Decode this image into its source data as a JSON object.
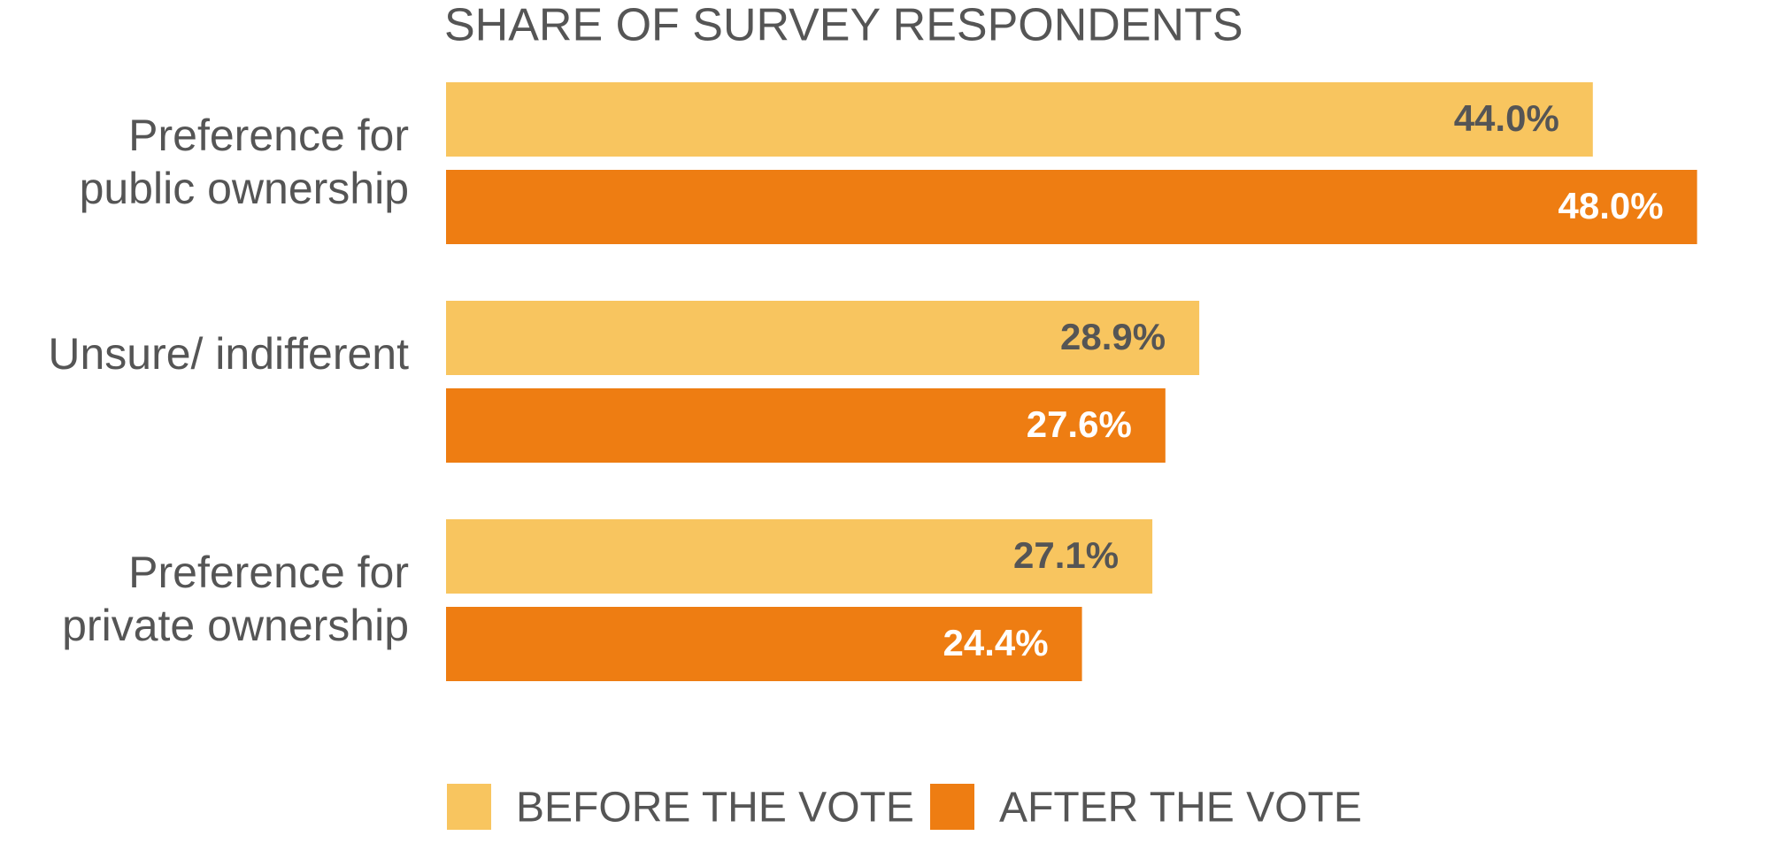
{
  "chart_data": {
    "type": "hbar",
    "title": "SHARE OF SURVEY RESPONDENTS",
    "categories": [
      "Preference for public ownership",
      "Unsure/ indifferent",
      "Preference for private ownership"
    ],
    "series": [
      {
        "name": "BEFORE THE VOTE",
        "color": "#f8c55f",
        "values": [
          44.0,
          28.9,
          27.1
        ],
        "value_labels": [
          "44.0%",
          "28.9%",
          "27.1%"
        ]
      },
      {
        "name": "AFTER THE VOTE",
        "color": "#ee7d12",
        "values": [
          48.0,
          27.6,
          24.4
        ],
        "value_labels": [
          "48.0%",
          "27.6%",
          "24.4%"
        ]
      }
    ]
  }
}
